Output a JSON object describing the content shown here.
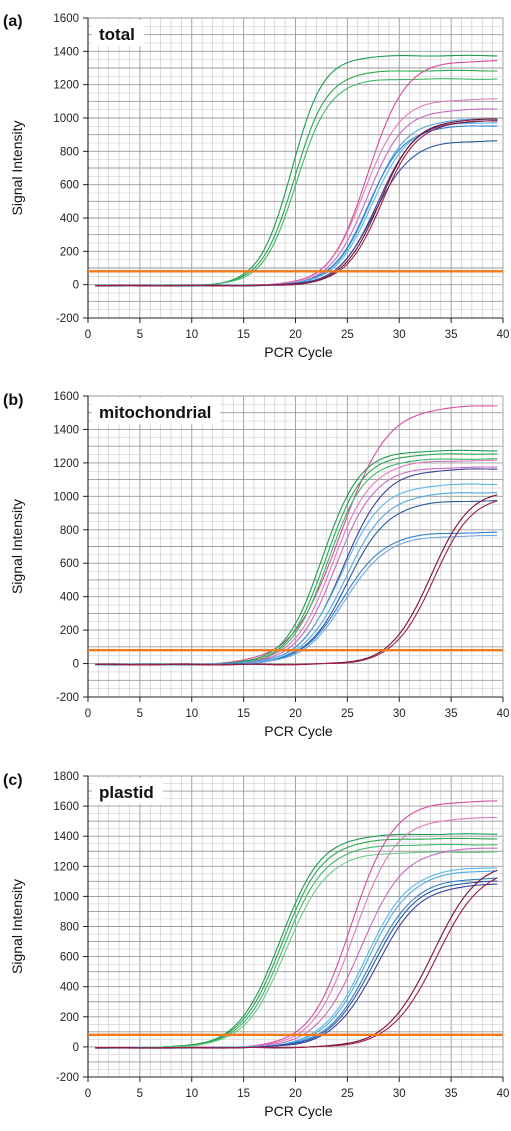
{
  "chart_data": [
    {
      "type": "line",
      "panel_letter": "(a)",
      "label": "total",
      "xlabel": "PCR Cycle",
      "ylabel": "Signal Intensity",
      "xlim": [
        0,
        40
      ],
      "ylim": [
        -200,
        1600
      ],
      "xticks": [
        0,
        5,
        10,
        15,
        20,
        25,
        30,
        35,
        40
      ],
      "yticks": [
        -200,
        0,
        200,
        400,
        600,
        800,
        1000,
        1200,
        1400,
        1600
      ],
      "grid": true,
      "threshold": 80,
      "threshold_color": "#f07a1c",
      "series": [
        {
          "color": "#1f9a52",
          "midpoint": 19.6,
          "plateau": 1380,
          "slope": 1.55
        },
        {
          "color": "#2ca84f",
          "midpoint": 19.9,
          "plateau": 1290,
          "slope": 1.6
        },
        {
          "color": "#3fb86a",
          "midpoint": 20.1,
          "plateau": 1240,
          "slope": 1.6
        },
        {
          "color": "#d94b9c",
          "midpoint": 27.0,
          "plateau": 1350,
          "slope": 1.8
        },
        {
          "color": "#e07bb8",
          "midpoint": 26.6,
          "plateau": 1120,
          "slope": 1.75
        },
        {
          "color": "#c86ac0",
          "midpoint": 26.9,
          "plateau": 1060,
          "slope": 1.75
        },
        {
          "color": "#4fa6df",
          "midpoint": 27.2,
          "plateau": 1000,
          "slope": 1.75
        },
        {
          "color": "#2f7fd0",
          "midpoint": 27.0,
          "plateau": 960,
          "slope": 1.75
        },
        {
          "color": "#5ab8e8",
          "midpoint": 27.4,
          "plateau": 980,
          "slope": 1.8
        },
        {
          "color": "#28589e",
          "midpoint": 27.6,
          "plateau": 870,
          "slope": 1.8
        },
        {
          "color": "#3a3f9a",
          "midpoint": 27.9,
          "plateau": 990,
          "slope": 1.8
        },
        {
          "color": "#7a1030",
          "midpoint": 28.1,
          "plateau": 1000,
          "slope": 1.75
        },
        {
          "color": "#9a2040",
          "midpoint": 28.3,
          "plateau": 990,
          "slope": 1.75
        }
      ]
    },
    {
      "type": "line",
      "panel_letter": "(b)",
      "label": "mitochondrial",
      "xlabel": "PCR Cycle",
      "ylabel": "Signal Intensity",
      "xlim": [
        0,
        40
      ],
      "ylim": [
        -200,
        1600
      ],
      "xticks": [
        0,
        5,
        10,
        15,
        20,
        25,
        30,
        35,
        40
      ],
      "yticks": [
        -200,
        0,
        200,
        400,
        600,
        800,
        1000,
        1200,
        1400,
        1600
      ],
      "grid": true,
      "threshold": 80,
      "threshold_color": "#f07a1c",
      "series": [
        {
          "color": "#d94b9c",
          "midpoint": 24.3,
          "plateau": 1550,
          "slope": 2.3
        },
        {
          "color": "#1f9a52",
          "midpoint": 22.6,
          "plateau": 1280,
          "slope": 1.8
        },
        {
          "color": "#2ca84f",
          "midpoint": 22.9,
          "plateau": 1260,
          "slope": 1.8
        },
        {
          "color": "#3fb86a",
          "midpoint": 23.1,
          "plateau": 1230,
          "slope": 1.8
        },
        {
          "color": "#e07bb8",
          "midpoint": 23.6,
          "plateau": 1220,
          "slope": 1.9
        },
        {
          "color": "#c86ac0",
          "midpoint": 23.9,
          "plateau": 1180,
          "slope": 1.9
        },
        {
          "color": "#3a3f9a",
          "midpoint": 24.6,
          "plateau": 1170,
          "slope": 2.0
        },
        {
          "color": "#5ab8e8",
          "midpoint": 24.4,
          "plateau": 1080,
          "slope": 2.0
        },
        {
          "color": "#4fa6df",
          "midpoint": 24.8,
          "plateau": 1030,
          "slope": 2.0
        },
        {
          "color": "#28589e",
          "midpoint": 25.0,
          "plateau": 980,
          "slope": 2.0
        },
        {
          "color": "#2f7fd0",
          "midpoint": 24.6,
          "plateau": 790,
          "slope": 2.0
        },
        {
          "color": "#6fa8e0",
          "midpoint": 24.8,
          "plateau": 770,
          "slope": 2.0
        },
        {
          "color": "#7a1030",
          "midpoint": 33.0,
          "plateau": 1050,
          "slope": 1.9
        },
        {
          "color": "#9a2040",
          "midpoint": 33.3,
          "plateau": 1020,
          "slope": 1.9
        }
      ]
    },
    {
      "type": "line",
      "panel_letter": "(c)",
      "label": "plastid",
      "xlabel": "PCR Cycle",
      "ylabel": "Signal Intensity",
      "xlim": [
        0,
        40
      ],
      "ylim": [
        -200,
        1800
      ],
      "xticks": [
        0,
        5,
        10,
        15,
        20,
        25,
        30,
        35,
        40
      ],
      "yticks": [
        -200,
        0,
        200,
        400,
        600,
        800,
        1000,
        1200,
        1400,
        1600,
        1800
      ],
      "grid": true,
      "threshold": 80,
      "threshold_color": "#f07a1c",
      "series": [
        {
          "color": "#1f9a52",
          "midpoint": 18.5,
          "plateau": 1420,
          "slope": 2.0
        },
        {
          "color": "#2ca84f",
          "midpoint": 18.7,
          "plateau": 1390,
          "slope": 2.0
        },
        {
          "color": "#3fb86a",
          "midpoint": 18.9,
          "plateau": 1350,
          "slope": 2.0
        },
        {
          "color": "#6fc88a",
          "midpoint": 19.1,
          "plateau": 1300,
          "slope": 2.0
        },
        {
          "color": "#d94b9c",
          "midpoint": 25.4,
          "plateau": 1640,
          "slope": 2.0
        },
        {
          "color": "#e07bb8",
          "midpoint": 25.7,
          "plateau": 1530,
          "slope": 2.0
        },
        {
          "color": "#c86ac0",
          "midpoint": 26.3,
          "plateau": 1330,
          "slope": 2.1
        },
        {
          "color": "#5ab8e8",
          "midpoint": 26.8,
          "plateau": 1200,
          "slope": 2.1
        },
        {
          "color": "#4fa6df",
          "midpoint": 27.0,
          "plateau": 1180,
          "slope": 2.1
        },
        {
          "color": "#2f7fd0",
          "midpoint": 27.3,
          "plateau": 1130,
          "slope": 2.1
        },
        {
          "color": "#28589e",
          "midpoint": 27.5,
          "plateau": 1110,
          "slope": 2.1
        },
        {
          "color": "#3a3f9a",
          "midpoint": 27.8,
          "plateau": 1090,
          "slope": 2.1
        },
        {
          "color": "#7a1030",
          "midpoint": 33.2,
          "plateau": 1250,
          "slope": 2.2
        },
        {
          "color": "#9a2040",
          "midpoint": 33.6,
          "plateau": 1210,
          "slope": 2.2
        }
      ]
    }
  ]
}
